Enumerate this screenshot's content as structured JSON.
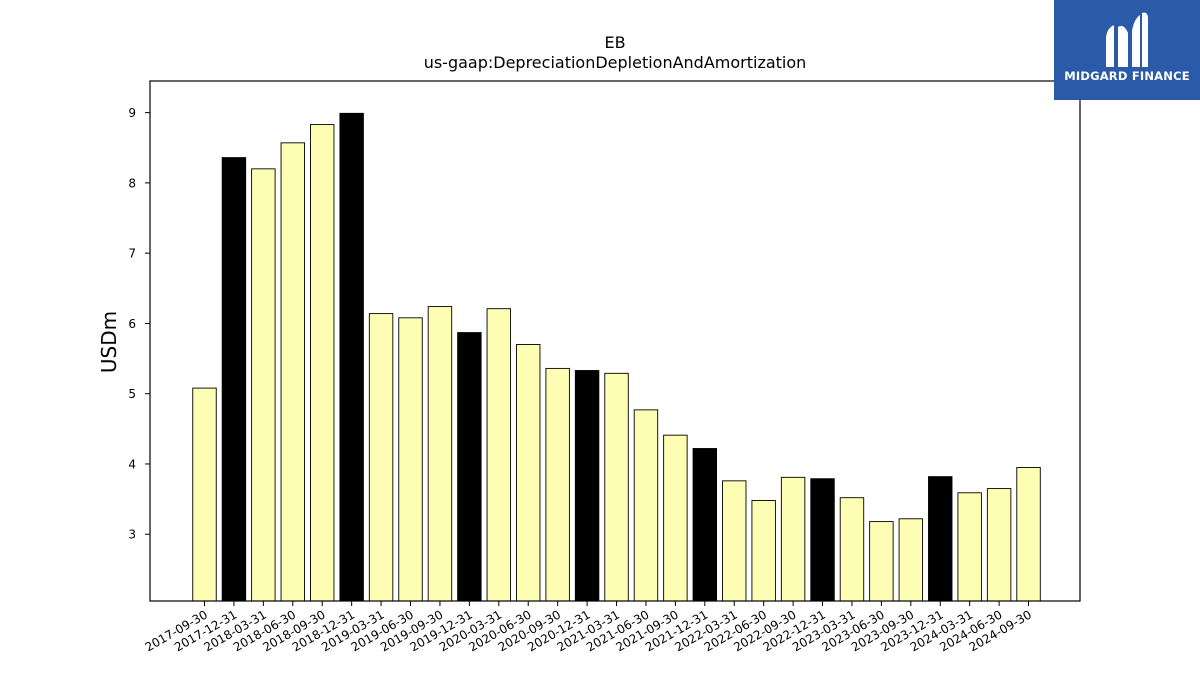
{
  "chart_data": {
    "type": "bar",
    "title": "EB",
    "subtitle": "us-gaap:DepreciationDepletionAndAmortization",
    "xlabel": "",
    "ylabel": "USDm",
    "ylim": [
      2.05,
      9.45
    ],
    "yticks": [
      3,
      4,
      5,
      6,
      7,
      8,
      9
    ],
    "grid": false,
    "categories": [
      "2017-09-30",
      "2017-12-31",
      "2018-03-31",
      "2018-06-30",
      "2018-09-30",
      "2018-12-31",
      "2019-03-31",
      "2019-06-30",
      "2019-09-30",
      "2019-12-31",
      "2020-03-31",
      "2020-06-30",
      "2020-09-30",
      "2020-12-31",
      "2021-03-31",
      "2021-06-30",
      "2021-09-30",
      "2021-12-31",
      "2022-03-31",
      "2022-06-30",
      "2022-09-30",
      "2022-12-31",
      "2023-03-31",
      "2023-06-30",
      "2023-09-30",
      "2023-12-31",
      "2024-03-31",
      "2024-06-30",
      "2024-09-30"
    ],
    "values": [
      5.08,
      8.36,
      8.2,
      8.57,
      8.83,
      8.99,
      6.14,
      6.08,
      6.24,
      5.87,
      6.21,
      5.7,
      5.36,
      5.33,
      5.29,
      4.77,
      4.41,
      4.22,
      3.76,
      3.48,
      3.81,
      3.79,
      3.52,
      3.18,
      3.22,
      3.82,
      3.59,
      3.65,
      3.95
    ],
    "highlight": [
      false,
      true,
      false,
      false,
      false,
      true,
      false,
      false,
      false,
      true,
      false,
      false,
      false,
      true,
      false,
      false,
      false,
      true,
      false,
      false,
      false,
      true,
      false,
      false,
      false,
      true,
      false,
      false,
      false
    ],
    "colors": {
      "bar": "#fdfdb4",
      "highlight": "#000000",
      "edge": "#000000"
    }
  },
  "logo": {
    "text": "MIDGARD FINANCE",
    "background": "#2b5aa8"
  }
}
